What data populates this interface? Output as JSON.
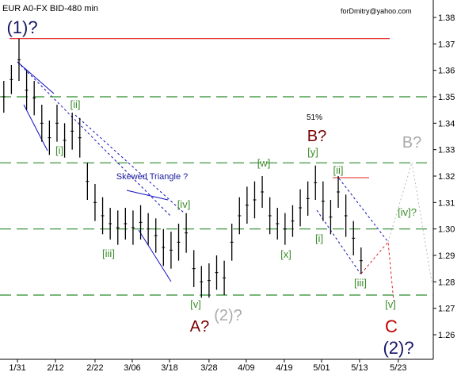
{
  "chart_data": {
    "type": "ohlc",
    "title": "EUR A0-FX BID-480 min",
    "subtitle": "forDmitry@yahoo.com",
    "x": [
      0,
      2,
      4,
      6,
      8,
      10,
      12,
      14,
      16,
      18,
      20,
      22,
      24,
      26,
      28,
      30,
      32,
      34,
      36,
      38,
      40,
      42,
      44,
      46,
      48,
      50,
      52,
      54,
      56,
      58,
      60,
      62,
      64,
      66,
      68,
      70,
      72,
      74,
      76,
      78,
      80,
      82,
      84,
      86,
      88,
      90,
      92,
      94
    ],
    "series": [
      {
        "name": "high",
        "color": "#000000",
        "values": [
          1.356,
          1.362,
          1.372,
          1.36,
          1.356,
          1.347,
          1.341,
          1.347,
          1.34,
          1.344,
          1.342,
          1.325,
          1.317,
          1.312,
          1.308,
          1.307,
          1.308,
          1.307,
          1.309,
          1.306,
          1.304,
          1.3,
          1.299,
          1.302,
          1.306,
          1.292,
          1.286,
          1.287,
          1.29,
          1.288,
          1.302,
          1.312,
          1.316,
          1.318,
          1.32,
          1.312,
          1.308,
          1.306,
          1.309,
          1.315,
          1.318,
          1.324,
          1.318,
          1.311,
          1.32,
          1.313,
          1.303,
          1.293
        ]
      },
      {
        "name": "low",
        "color": "#000000",
        "values": [
          1.344,
          1.351,
          1.356,
          1.345,
          1.343,
          1.333,
          1.328,
          1.333,
          1.327,
          1.33,
          1.327,
          1.311,
          1.303,
          1.298,
          1.296,
          1.294,
          1.296,
          1.294,
          1.296,
          1.294,
          1.291,
          1.286,
          1.285,
          1.288,
          1.291,
          1.278,
          1.274,
          1.274,
          1.277,
          1.275,
          1.288,
          1.298,
          1.302,
          1.304,
          1.308,
          1.298,
          1.296,
          1.294,
          1.297,
          1.301,
          1.305,
          1.311,
          1.303,
          1.298,
          1.308,
          1.297,
          1.29,
          1.283
        ]
      }
    ],
    "xlim": [
      -1,
      113
    ],
    "xticks": [
      {
        "value": 3.6,
        "label": "1/31"
      },
      {
        "value": 13.6,
        "label": "2/12"
      },
      {
        "value": 24,
        "label": "2/22"
      },
      {
        "value": 33.8,
        "label": "3/06"
      },
      {
        "value": 43.6,
        "label": "3/18"
      },
      {
        "value": 54,
        "label": "3/28"
      },
      {
        "value": 63.8,
        "label": "4/09"
      },
      {
        "value": 73.8,
        "label": "4/19"
      },
      {
        "value": 83.6,
        "label": "5/01"
      },
      {
        "value": 93.6,
        "label": "5/13"
      },
      {
        "value": 103.8,
        "label": "5/23"
      }
    ],
    "ylim": [
      1.2507,
      1.3866
    ],
    "yticks": [
      1.26,
      1.27,
      1.28,
      1.29,
      {
        "value": 1.3,
        "label": "1.30"
      },
      1.31,
      1.32,
      1.33,
      1.34,
      1.35,
      1.36,
      1.37,
      1.38
    ],
    "levels": [
      {
        "value": 1.372,
        "color": "#e02020",
        "style": "solid"
      },
      {
        "value": 1.35,
        "color": "#2a8a2a",
        "style": "dashed"
      },
      {
        "value": 1.325,
        "color": "#2a8a2a",
        "style": "dashed"
      },
      {
        "value": 1.3,
        "color": "#2a8a2a",
        "style": "dashed"
      },
      {
        "value": 1.275,
        "color": "#2a8a2a",
        "style": "dashed"
      }
    ],
    "annotations": [
      "(1)?",
      "[ii]",
      "[i]",
      "Skewed Triangle ?",
      "[iv]",
      "[iii]",
      "[v]",
      "A?",
      "(2)?",
      "[w]",
      "[x]",
      "[y]",
      "51%",
      "B?",
      "[ii]",
      "[i]",
      "[iv]?",
      "[iii]",
      "B?",
      "[v]",
      "C",
      "(2)?"
    ]
  }
}
